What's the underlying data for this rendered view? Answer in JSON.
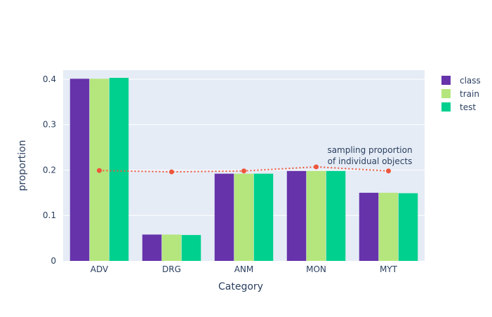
{
  "chart_data": {
    "type": "bar",
    "title": "",
    "xlabel": "Category",
    "ylabel": "proportion",
    "categories": [
      "ADV",
      "DRG",
      "ANM",
      "MON",
      "MYT"
    ],
    "ylim": [
      0,
      0.42
    ],
    "yticks": [
      0,
      0.1,
      0.2,
      0.3,
      0.4
    ],
    "ytick_labels": [
      "0",
      "0.1",
      "0.2",
      "0.3",
      "0.4"
    ],
    "series": [
      {
        "name": "class",
        "color": "#6633aa",
        "values": [
          0.401,
          0.058,
          0.192,
          0.198,
          0.15
        ]
      },
      {
        "name": "train",
        "color": "#b5e67d",
        "values": [
          0.401,
          0.058,
          0.192,
          0.198,
          0.15
        ]
      },
      {
        "name": "test",
        "color": "#00d08e",
        "values": [
          0.403,
          0.057,
          0.192,
          0.198,
          0.149
        ]
      }
    ],
    "line": {
      "name": "sampling proportion of individual objects",
      "color": "#ef553b",
      "style": "dotted",
      "values": [
        0.199,
        0.196,
        0.198,
        0.207,
        0.198
      ]
    },
    "annotation": {
      "lines": [
        "sampling proportion",
        "of individual objects"
      ]
    },
    "legend_position": "top-right",
    "background_color": "#e5ecf6",
    "grid": true
  }
}
